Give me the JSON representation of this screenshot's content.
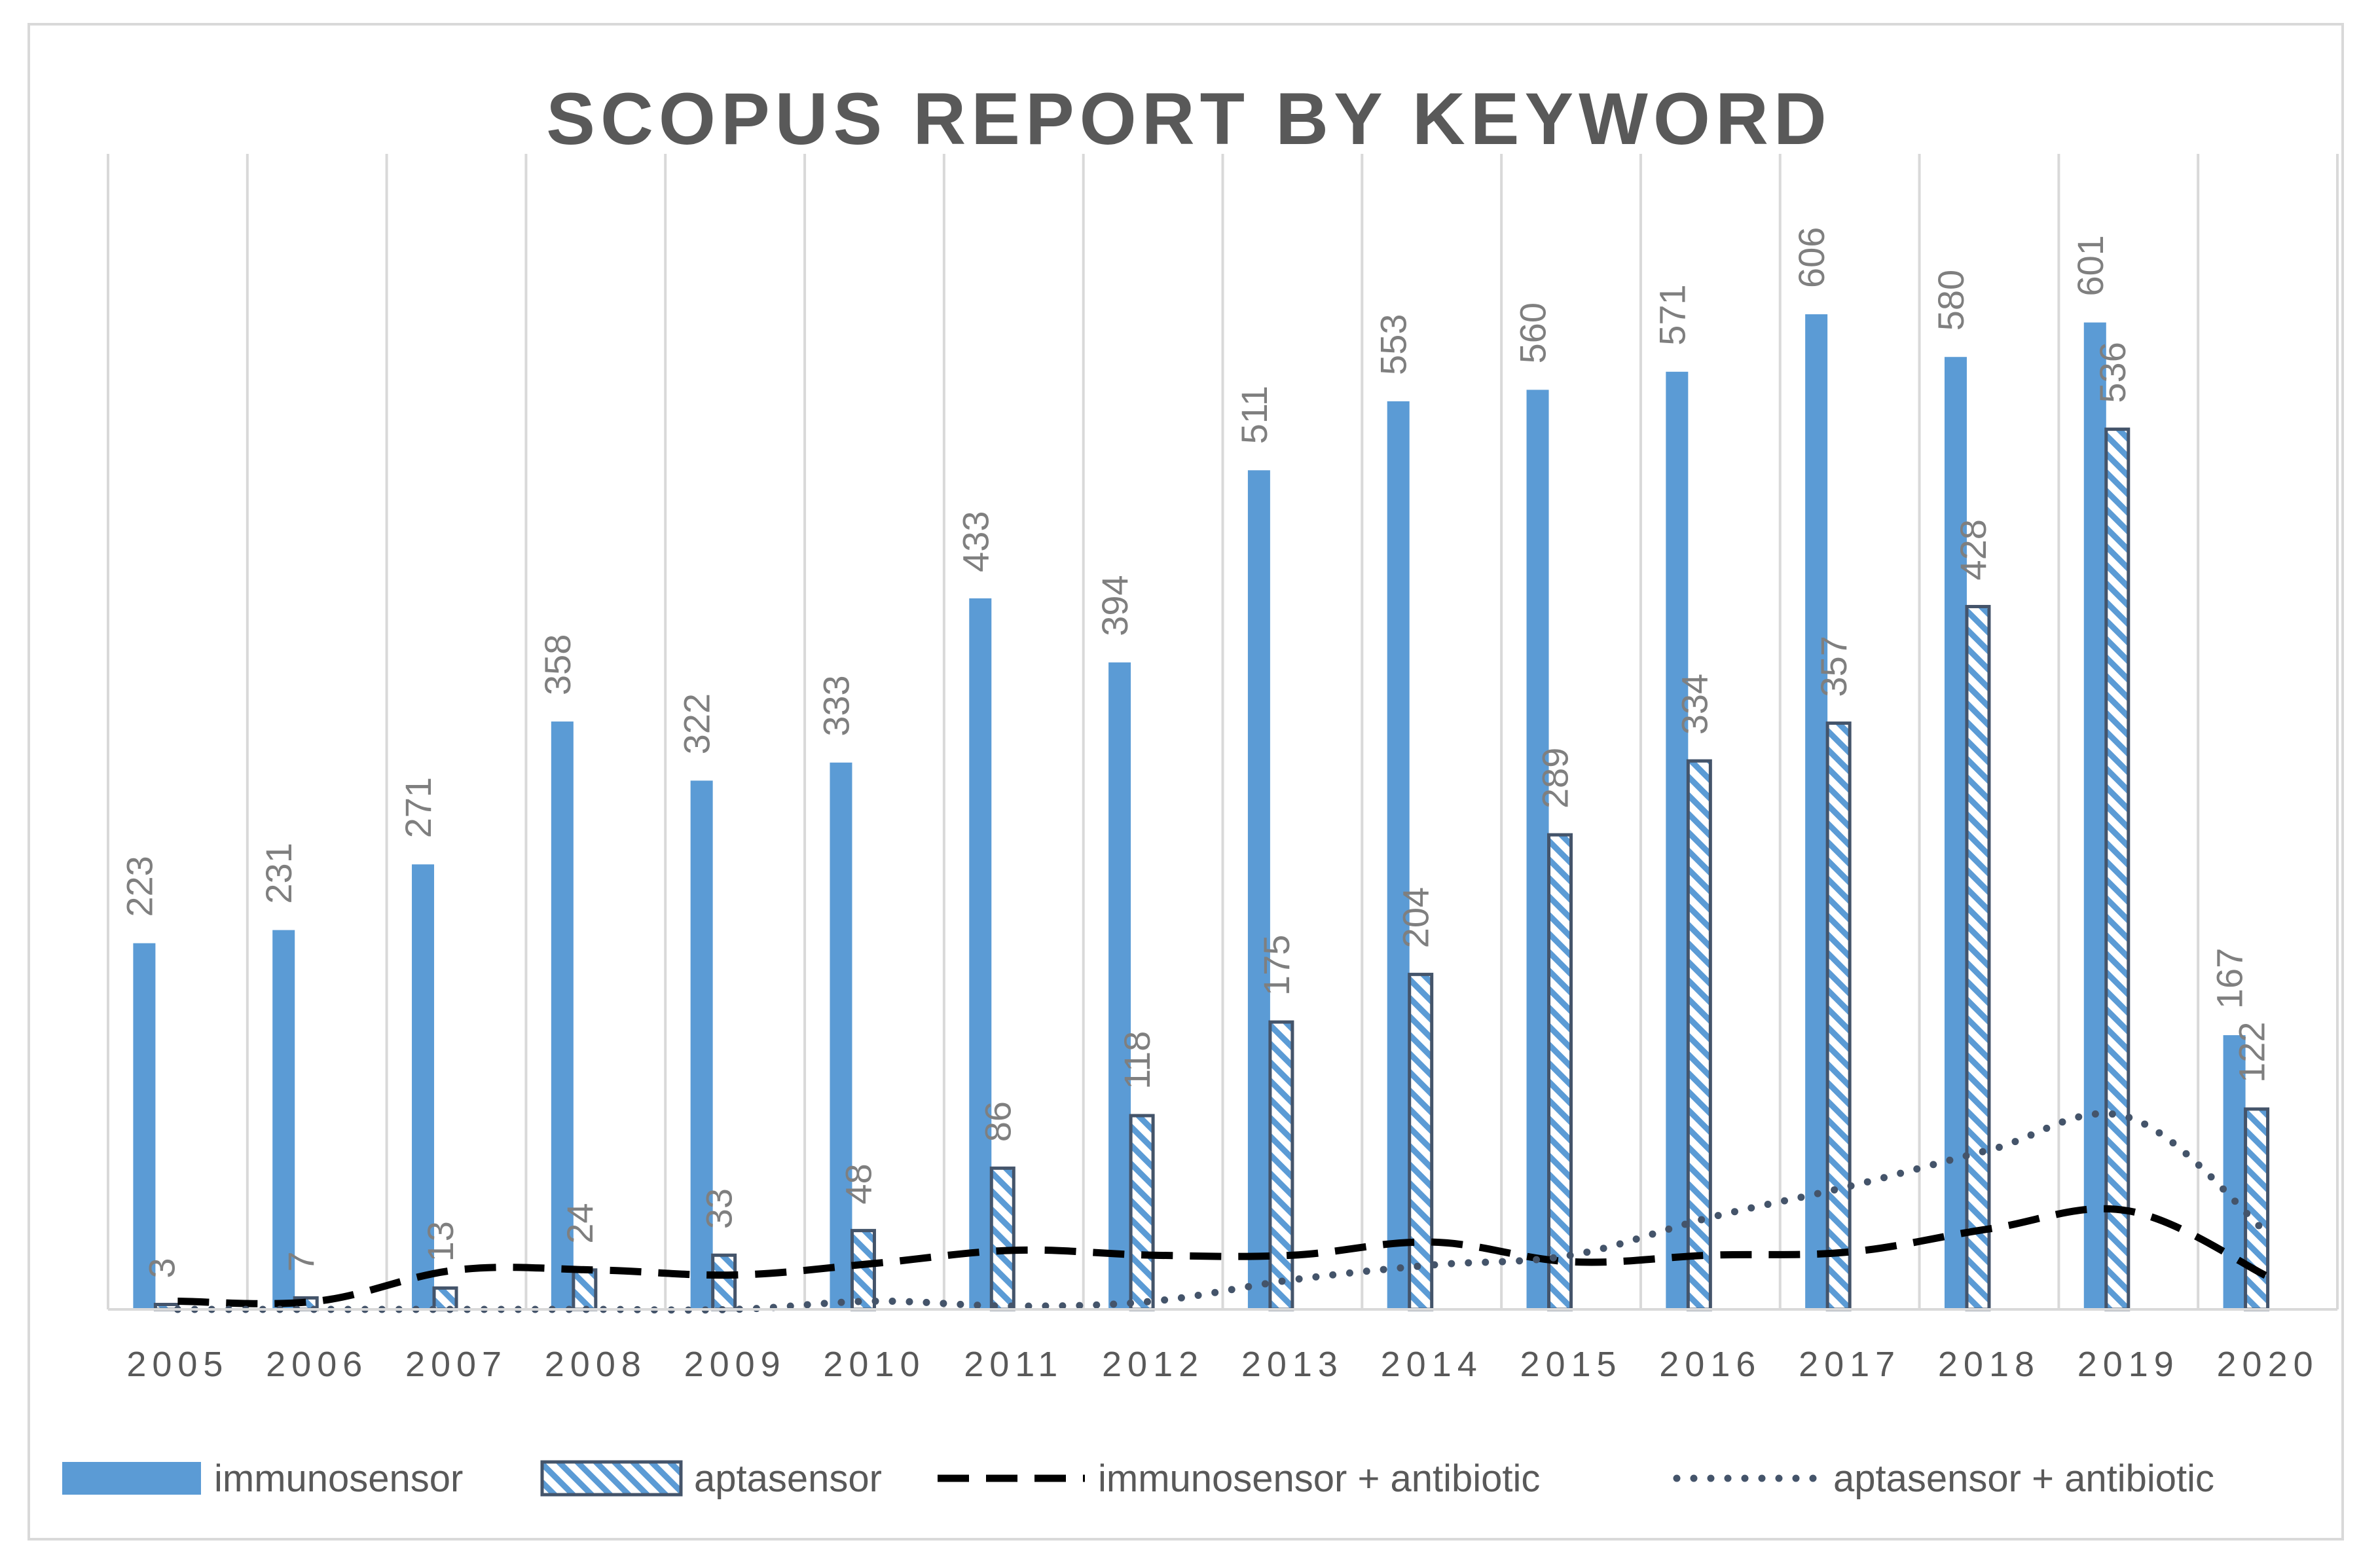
{
  "chart_data": {
    "type": "bar",
    "title": "SCOPUS REPORT BY KEYWORD",
    "xlabel": "",
    "ylabel": "",
    "ylim": [
      0,
      650
    ],
    "grid": "vertical",
    "legend_position": "bottom",
    "categories": [
      "2005",
      "2006",
      "2007",
      "2008",
      "2009",
      "2010",
      "2011",
      "2012",
      "2013",
      "2014",
      "2015",
      "2016",
      "2017",
      "2018",
      "2019",
      "2020"
    ],
    "series": [
      {
        "name": "immunosensor",
        "kind": "bar",
        "color": "#5b9bd5",
        "values": [
          223,
          231,
          271,
          358,
          322,
          333,
          433,
          394,
          511,
          553,
          560,
          571,
          606,
          580,
          601,
          167
        ]
      },
      {
        "name": "aptasensor",
        "kind": "bar-hatched",
        "color": "#5b9bd5",
        "edge": "#44546a",
        "values": [
          3,
          7,
          13,
          24,
          33,
          48,
          86,
          118,
          175,
          204,
          289,
          334,
          357,
          428,
          536,
          122
        ]
      },
      {
        "name": "immunosensor + antibiotic",
        "kind": "line-dashed",
        "color": "#000000",
        "values": [
          5,
          5,
          24,
          24,
          21,
          28,
          36,
          33,
          33,
          41,
          29,
          33,
          35,
          49,
          60,
          20
        ]
      },
      {
        "name": "aptasensor + antibiotic",
        "kind": "line-dotted",
        "color": "#44546a",
        "values": [
          0,
          0,
          0,
          0,
          0,
          5,
          2,
          5,
          18,
          27,
          33,
          56,
          75,
          97,
          117,
          46
        ]
      }
    ]
  }
}
